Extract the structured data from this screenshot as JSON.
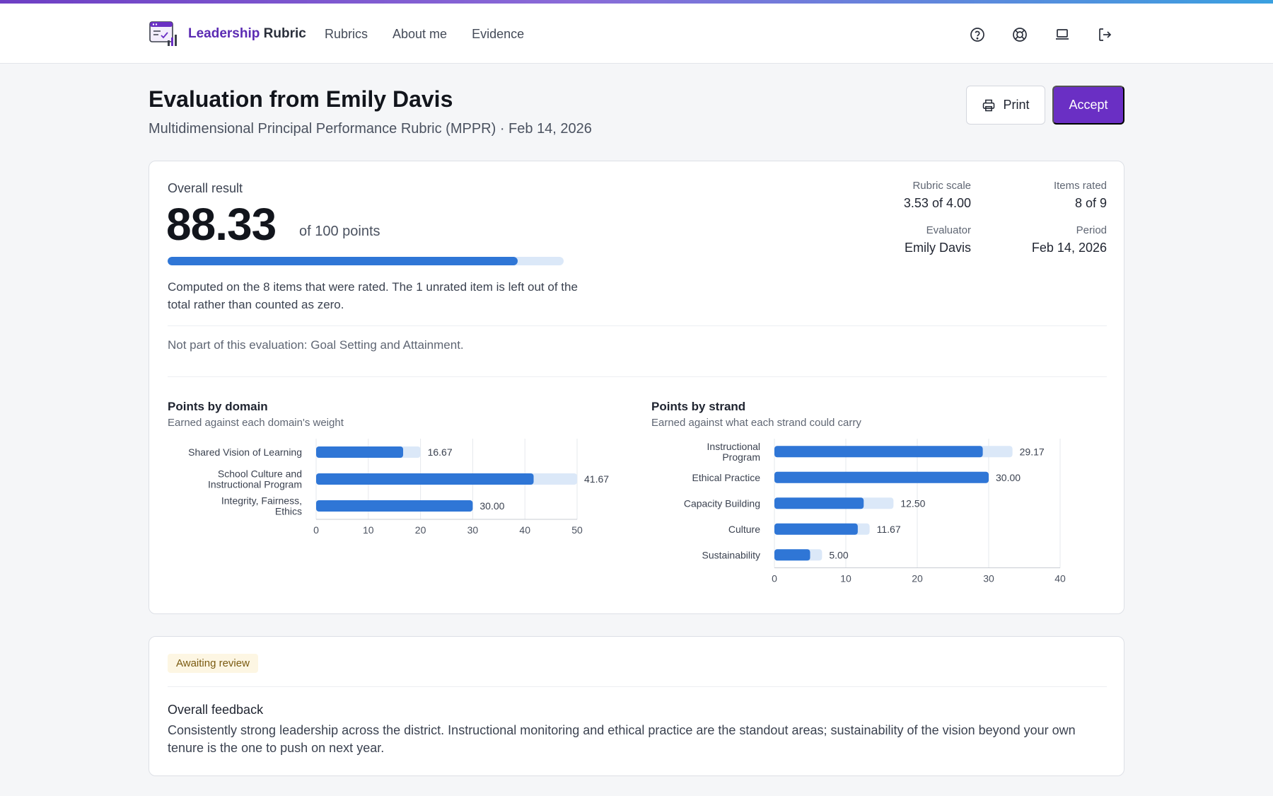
{
  "nav": {
    "brand_part1": "Leadership",
    "brand_part2": "Rubric",
    "links": [
      "Rubrics",
      "About me",
      "Evidence"
    ],
    "icons": [
      "help-circle-icon",
      "lifebuoy-icon",
      "laptop-icon",
      "logout-icon"
    ]
  },
  "header": {
    "title": "Evaluation from Emily Davis",
    "subtitle": "Multidimensional Principal Performance Rubric (MPPR) · Feb 14, 2026",
    "print_label": "Print",
    "accept_label": "Accept"
  },
  "overall": {
    "label": "Overall result",
    "score": "88.33",
    "of_text": "of 100 points",
    "progress": 0.8833,
    "note": "Computed on the 8 items that were rated. The 1 unrated item is left out of the total rather than counted as zero.",
    "excluded": "Not part of this evaluation: Goal Setting and Attainment."
  },
  "stats": {
    "rubric_scale_label": "Rubric scale",
    "rubric_scale_value": "3.53 of 4.00",
    "items_rated_label": "Items rated",
    "items_rated_value": "8 of 9",
    "evaluator_label": "Evaluator",
    "evaluator_value": "Emily Davis",
    "period_label": "Period",
    "period_value": "Feb 14, 2026"
  },
  "chart_data": [
    {
      "type": "bar",
      "orientation": "horizontal",
      "title": "Points by domain",
      "subtitle": "Earned against each domain's weight",
      "categories": [
        [
          "Shared Vision of Learning"
        ],
        [
          "School Culture and",
          "Instructional Program"
        ],
        [
          "Integrity, Fairness,",
          "Ethics"
        ]
      ],
      "series": [
        {
          "values": [
            16.67,
            41.67,
            30.0
          ]
        },
        {
          "values": [
            20,
            50,
            30
          ]
        }
      ],
      "value_labels": [
        "16.67",
        "41.67",
        "30.00"
      ],
      "xlim": [
        0,
        50
      ],
      "ticks": [
        0,
        10,
        20,
        30,
        40,
        50
      ],
      "grid": true
    },
    {
      "type": "bar",
      "orientation": "horizontal",
      "title": "Points by strand",
      "subtitle": "Earned against what each strand could carry",
      "categories": [
        [
          "Instructional",
          "Program"
        ],
        [
          "Ethical Practice"
        ],
        [
          "Capacity Building"
        ],
        [
          "Culture"
        ],
        [
          "Sustainability"
        ]
      ],
      "series": [
        {
          "values": [
            29.17,
            30.0,
            12.5,
            11.67,
            5.0
          ]
        },
        {
          "values": [
            33.33,
            30.0,
            16.67,
            13.33,
            6.67
          ]
        }
      ],
      "value_labels": [
        "29.17",
        "30.00",
        "12.50",
        "11.67",
        "5.00"
      ],
      "xlim": [
        0,
        40
      ],
      "ticks": [
        0,
        10,
        20,
        30,
        40
      ],
      "grid": true
    }
  ],
  "colors": {
    "earned": "#2f76d6",
    "possible": "#dbe8f8",
    "accent": "#6a2fc4"
  },
  "review": {
    "status": "Awaiting review",
    "feedback_title": "Overall feedback",
    "feedback_text": "Consistently strong leadership across the district. Instructional monitoring and ethical practice are the standout areas; sustainability of the vision beyond your own tenure is the one to push on next year."
  }
}
